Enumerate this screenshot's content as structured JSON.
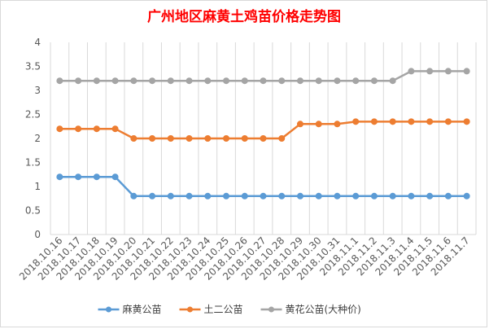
{
  "chart_data": {
    "type": "line",
    "title": "广州地区麻黄土鸡苗价格走势图",
    "xlabel": "",
    "ylabel": "",
    "ylim": [
      0,
      4
    ],
    "yticks": [
      "0",
      "0.5",
      "1",
      "1.5",
      "2",
      "2.5",
      "3",
      "3.5",
      "4"
    ],
    "grid": "vertical",
    "legend_position": "bottom",
    "categories": [
      "2018.10.16",
      "2018.10.17",
      "2018.10.18",
      "2018.10.19",
      "2018.10.20",
      "2018.10.21",
      "2018.10.22",
      "2018.10.23",
      "2018.10.24",
      "2018.10.25",
      "2018.10.26",
      "2018.10.27",
      "2018.10.28",
      "2018.10.29",
      "2018.10.30",
      "2018.10.31",
      "2018.11.1",
      "2018.11.2",
      "2018.11.3",
      "2018.11.4",
      "2018.11.5",
      "2018.11.6",
      "2018.11.7"
    ],
    "series": [
      {
        "name": "麻黄公苗",
        "color": "#5b9bd5",
        "values": [
          1.2,
          1.2,
          1.2,
          1.2,
          0.8,
          0.8,
          0.8,
          0.8,
          0.8,
          0.8,
          0.8,
          0.8,
          0.8,
          0.8,
          0.8,
          0.8,
          0.8,
          0.8,
          0.8,
          0.8,
          0.8,
          0.8,
          0.8
        ]
      },
      {
        "name": "土二公苗",
        "color": "#ed7d31",
        "values": [
          2.2,
          2.2,
          2.2,
          2.2,
          2.0,
          2.0,
          2.0,
          2.0,
          2.0,
          2.0,
          2.0,
          2.0,
          2.0,
          2.3,
          2.3,
          2.3,
          2.35,
          2.35,
          2.35,
          2.35,
          2.35,
          2.35,
          2.35
        ]
      },
      {
        "name": "黄花公苗(大种价)",
        "color": "#a5a5a5",
        "values": [
          3.2,
          3.2,
          3.2,
          3.2,
          3.2,
          3.2,
          3.2,
          3.2,
          3.2,
          3.2,
          3.2,
          3.2,
          3.2,
          3.2,
          3.2,
          3.2,
          3.2,
          3.2,
          3.2,
          3.4,
          3.4,
          3.4,
          3.4
        ]
      }
    ]
  }
}
